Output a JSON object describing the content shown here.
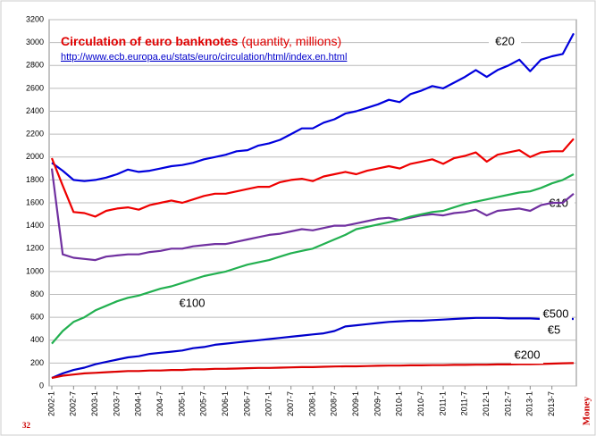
{
  "chart_data": {
    "type": "line",
    "title": "Circulation of euro banknotes",
    "subtitle": "(quantity, millions)",
    "source": "http://www.ecb.europa.eu/stats/euro/circulation/html/index.en.html",
    "page_number": "32",
    "side_label": "Money",
    "categories": [
      "2002-1",
      null,
      "2002-7",
      null,
      "2003-1",
      null,
      "2003-7",
      null,
      "2004-1",
      null,
      "2004-7",
      null,
      "2005-1",
      null,
      "2005-7",
      null,
      "2006-1",
      null,
      "2006-7",
      null,
      "2007-1",
      null,
      "2007-7",
      null,
      "2008-1",
      null,
      "2008-7",
      null,
      "2009-1",
      null,
      "2009-7",
      null,
      "2010-1",
      null,
      "2010-7",
      null,
      "2011-1",
      null,
      "2011-7",
      null,
      "2012-1",
      null,
      "2012-7",
      null,
      "2013-1",
      null,
      "2013-7",
      null,
      null
    ],
    "ylim": [
      0,
      3200
    ],
    "yticks": [
      0,
      200,
      400,
      600,
      800,
      1000,
      1200,
      1400,
      1600,
      1800,
      2000,
      2200,
      2400,
      2600,
      2800,
      3000,
      3200
    ],
    "grid": true,
    "series": [
      {
        "name": "€20",
        "color": "#0000dd",
        "values": [
          1950,
          1880,
          1800,
          1790,
          1800,
          1820,
          1850,
          1890,
          1870,
          1880,
          1900,
          1920,
          1930,
          1950,
          1980,
          2000,
          2020,
          2050,
          2060,
          2100,
          2120,
          2150,
          2200,
          2250,
          2250,
          2300,
          2330,
          2380,
          2400,
          2430,
          2460,
          2500,
          2480,
          2550,
          2580,
          2620,
          2600,
          2650,
          2700,
          2760,
          2700,
          2760,
          2800,
          2850,
          2750,
          2850,
          2880,
          2900,
          3080
        ]
      },
      {
        "name": "€10",
        "color": "#ee0000",
        "values": [
          1990,
          1750,
          1520,
          1510,
          1480,
          1530,
          1550,
          1560,
          1540,
          1580,
          1600,
          1620,
          1600,
          1630,
          1660,
          1680,
          1680,
          1700,
          1720,
          1740,
          1740,
          1780,
          1800,
          1810,
          1790,
          1830,
          1850,
          1870,
          1850,
          1880,
          1900,
          1920,
          1900,
          1940,
          1960,
          1980,
          1940,
          1990,
          2010,
          2040,
          1960,
          2020,
          2040,
          2060,
          2000,
          2040,
          2050,
          2050,
          2160
        ]
      },
      {
        "name": "€5",
        "color": "#7030a0",
        "values": [
          1900,
          1150,
          1120,
          1110,
          1100,
          1130,
          1140,
          1150,
          1150,
          1170,
          1180,
          1200,
          1200,
          1220,
          1230,
          1240,
          1240,
          1260,
          1280,
          1300,
          1320,
          1330,
          1350,
          1370,
          1360,
          1380,
          1400,
          1400,
          1420,
          1440,
          1460,
          1470,
          1450,
          1470,
          1490,
          1500,
          1490,
          1510,
          1520,
          1540,
          1490,
          1530,
          1540,
          1550,
          1530,
          1580,
          1600,
          1600,
          1680
        ]
      },
      {
        "name": "€100",
        "color": "#22b050",
        "values": [
          370,
          480,
          560,
          600,
          660,
          700,
          740,
          770,
          790,
          820,
          850,
          870,
          900,
          930,
          960,
          980,
          1000,
          1030,
          1060,
          1080,
          1100,
          1130,
          1160,
          1180,
          1200,
          1240,
          1280,
          1320,
          1370,
          1390,
          1410,
          1430,
          1450,
          1480,
          1500,
          1520,
          1530,
          1560,
          1590,
          1610,
          1630,
          1650,
          1670,
          1690,
          1700,
          1730,
          1770,
          1800,
          1850
        ]
      },
      {
        "name": "€500",
        "color": "#0000cc",
        "values": [
          70,
          110,
          140,
          160,
          190,
          210,
          230,
          250,
          260,
          280,
          290,
          300,
          310,
          330,
          340,
          360,
          370,
          380,
          390,
          400,
          410,
          420,
          430,
          440,
          450,
          460,
          480,
          520,
          530,
          540,
          550,
          560,
          565,
          570,
          570,
          575,
          580,
          585,
          590,
          595,
          595,
          595,
          590,
          590,
          590,
          585,
          585,
          585,
          585
        ]
      },
      {
        "name": "€200",
        "color": "#dd0000",
        "values": [
          70,
          90,
          100,
          110,
          115,
          120,
          125,
          130,
          130,
          135,
          135,
          140,
          140,
          145,
          145,
          150,
          150,
          152,
          155,
          158,
          158,
          160,
          162,
          165,
          165,
          168,
          170,
          172,
          172,
          174,
          176,
          178,
          178,
          180,
          180,
          182,
          182,
          184,
          184,
          186,
          186,
          188,
          188,
          190,
          190,
          192,
          195,
          198,
          200
        ]
      }
    ]
  }
}
